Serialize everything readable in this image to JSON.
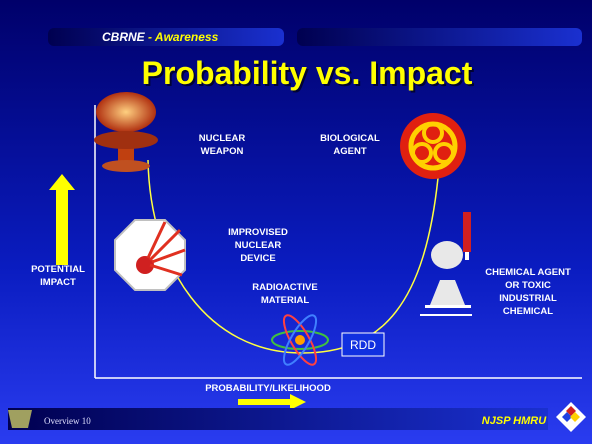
{
  "header": {
    "brand": "CBRNE",
    "subtitle": "- Awareness"
  },
  "title": "Probability vs. Impact",
  "items": [
    {
      "label": [
        "NUCLEAR",
        "WEAPON"
      ]
    },
    {
      "label": [
        "BIOLOGICAL",
        "AGENT"
      ]
    },
    {
      "label": [
        "IMPROVISED",
        "NUCLEAR",
        "DEVICE"
      ]
    },
    {
      "label": [
        "RADIOACTIVE",
        "MATERIAL"
      ]
    },
    {
      "label": [
        "CHEMICAL AGENT",
        "OR TOXIC",
        "INDUSTRIAL",
        "CHEMICAL"
      ]
    }
  ],
  "rdd": "RDD",
  "axes": {
    "y_label": [
      "POTENTIAL",
      "IMPACT"
    ],
    "x_label": "PROBABILITY/LIKELIHOOD"
  },
  "footer": {
    "left": "Overview 10",
    "right": "NJSP HMRU"
  }
}
